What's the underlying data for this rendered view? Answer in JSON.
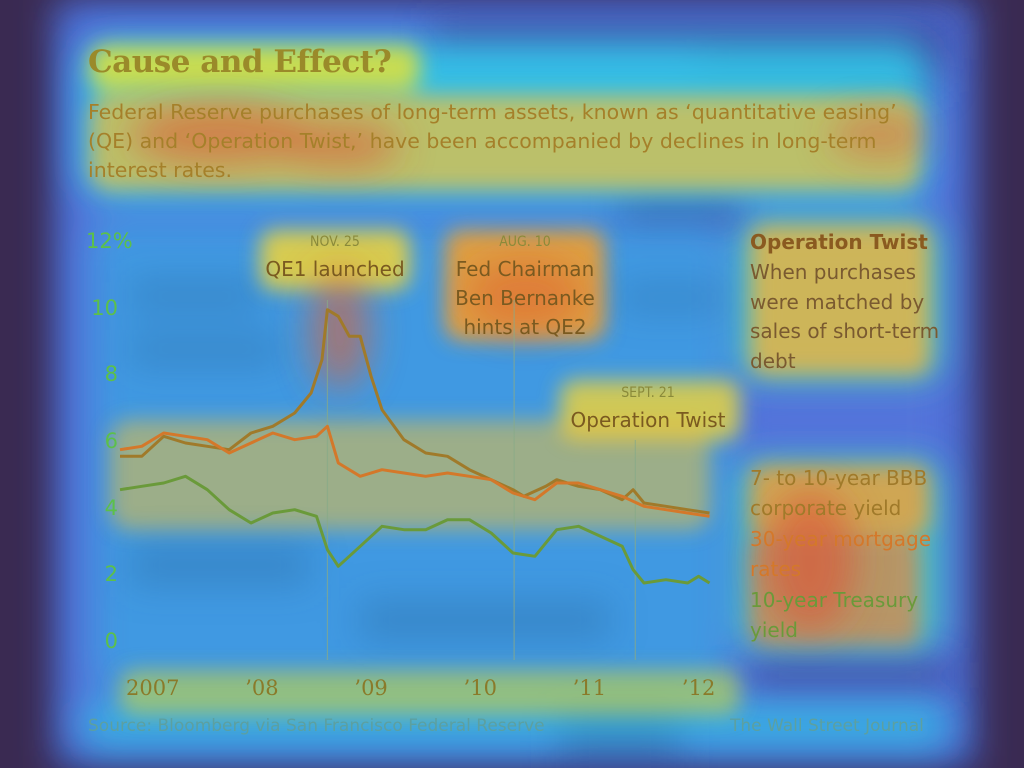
{
  "header": {
    "title": "Cause and Effect?",
    "subtitle": "Federal Reserve purchases of long-term assets, known as ‘quantitative easing’ (QE) and ‘Operation Twist,’ have been accompanied by declines in long-term interest rates."
  },
  "annotations": [
    {
      "date": "NOV. 25",
      "text": "QE1 launched"
    },
    {
      "date": "AUG. 10",
      "text": "Fed Chairman Ben Bernanke hints at QE2"
    },
    {
      "date": "SEPT. 21",
      "text": "Operation Twist"
    }
  ],
  "sidebar": {
    "twist_title": "Operation Twist",
    "twist_desc": "When purchases were matched by sales of short-term debt",
    "legend": [
      {
        "label": "7- to 10-year BBB corporate yield",
        "color": "#a07a2a"
      },
      {
        "label": "30-year mortgage rates",
        "color": "#d4782a"
      },
      {
        "label": "10-year Treasury yield",
        "color": "#6a9a3a"
      }
    ]
  },
  "footer": {
    "source": "Source: Bloomberg via San Francisco Federal Reserve",
    "credit": "The Wall Street Journal"
  },
  "colors": {
    "background": "#3a2a52",
    "title": "#9a8a2a",
    "subtitle": "#a5802a",
    "ytick": "#5cc04a",
    "xtick": "#8a7a2a"
  },
  "chart_data": {
    "type": "line",
    "title": "Cause and Effect?",
    "ylabel": "",
    "xlabel": "",
    "ylim": [
      0,
      12
    ],
    "xlim": [
      2007.0,
      2012.45
    ],
    "yticks": [
      "12%",
      "10",
      "8",
      "6",
      "4",
      "2",
      "0"
    ],
    "ytick_values": [
      12,
      10,
      8,
      6,
      4,
      2,
      0
    ],
    "xticks": [
      "2007",
      "’08",
      "’09",
      "’10",
      "’11",
      "’12"
    ],
    "xtick_values": [
      2007.3,
      2008.3,
      2009.3,
      2010.3,
      2011.3,
      2012.3
    ],
    "events": [
      {
        "label": "NOV. 25",
        "x": 2008.9
      },
      {
        "label": "AUG. 10",
        "x": 2010.61
      },
      {
        "label": "SEPT. 21",
        "x": 2011.72
      }
    ],
    "series": [
      {
        "name": "7- to 10-year BBB corporate yield",
        "x": [
          2007.0,
          2007.2,
          2007.4,
          2007.6,
          2007.8,
          2008.0,
          2008.2,
          2008.4,
          2008.6,
          2008.75,
          2008.85,
          2008.9,
          2009.0,
          2009.1,
          2009.2,
          2009.3,
          2009.4,
          2009.6,
          2009.8,
          2010.0,
          2010.2,
          2010.4,
          2010.6,
          2010.7,
          2010.9,
          2011.0,
          2011.2,
          2011.4,
          2011.6,
          2011.7,
          2011.8,
          2012.0,
          2012.2,
          2012.4
        ],
        "values": [
          5.6,
          5.6,
          6.2,
          6.0,
          5.9,
          5.8,
          6.3,
          6.5,
          6.9,
          7.5,
          8.5,
          10.0,
          9.8,
          9.2,
          9.2,
          8.0,
          7.0,
          6.1,
          5.7,
          5.6,
          5.2,
          4.9,
          4.6,
          4.4,
          4.7,
          4.9,
          4.7,
          4.6,
          4.3,
          4.6,
          4.2,
          4.1,
          4.0,
          3.9
        ]
      },
      {
        "name": "30-year mortgage rates",
        "x": [
          2007.0,
          2007.2,
          2007.4,
          2007.6,
          2007.8,
          2008.0,
          2008.2,
          2008.4,
          2008.6,
          2008.8,
          2008.9,
          2009.0,
          2009.2,
          2009.4,
          2009.6,
          2009.8,
          2010.0,
          2010.2,
          2010.4,
          2010.6,
          2010.8,
          2011.0,
          2011.2,
          2011.4,
          2011.6,
          2011.8,
          2012.0,
          2012.2,
          2012.4
        ],
        "values": [
          5.8,
          5.9,
          6.3,
          6.2,
          6.1,
          5.7,
          6.0,
          6.3,
          6.1,
          6.2,
          6.5,
          5.4,
          5.0,
          5.2,
          5.1,
          5.0,
          5.1,
          5.0,
          4.9,
          4.5,
          4.3,
          4.8,
          4.8,
          4.6,
          4.4,
          4.1,
          4.0,
          3.9,
          3.8
        ]
      },
      {
        "name": "10-year Treasury yield",
        "x": [
          2007.0,
          2007.2,
          2007.4,
          2007.6,
          2007.8,
          2008.0,
          2008.2,
          2008.4,
          2008.6,
          2008.8,
          2008.9,
          2009.0,
          2009.2,
          2009.4,
          2009.6,
          2009.8,
          2010.0,
          2010.2,
          2010.4,
          2010.6,
          2010.8,
          2011.0,
          2011.2,
          2011.4,
          2011.6,
          2011.7,
          2011.8,
          2012.0,
          2012.2,
          2012.3,
          2012.4
        ],
        "values": [
          4.6,
          4.7,
          4.8,
          5.0,
          4.6,
          4.0,
          3.6,
          3.9,
          4.0,
          3.8,
          2.8,
          2.3,
          2.9,
          3.5,
          3.4,
          3.4,
          3.7,
          3.7,
          3.3,
          2.7,
          2.6,
          3.4,
          3.5,
          3.2,
          2.9,
          2.2,
          1.8,
          1.9,
          1.8,
          2.0,
          1.8
        ]
      }
    ]
  }
}
